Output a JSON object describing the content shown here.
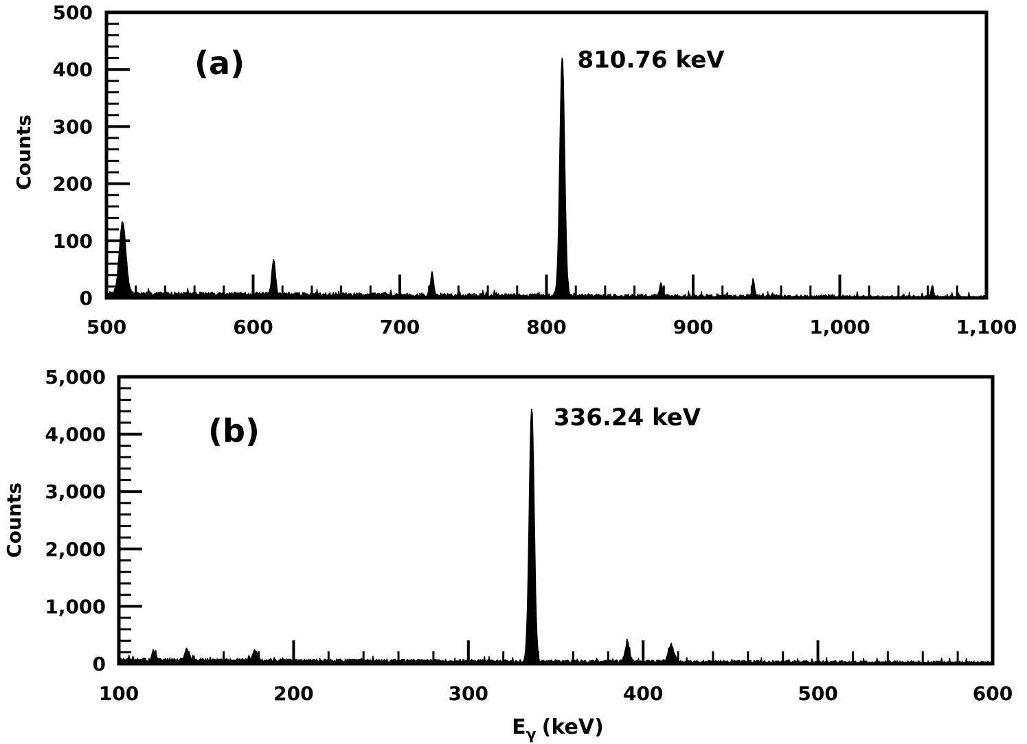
{
  "chart_data": [
    {
      "type": "line",
      "panel_label": "(a)",
      "xlabel": "",
      "ylabel": "Counts",
      "xlim": [
        500,
        1100
      ],
      "ylim": [
        0,
        500
      ],
      "x_ticks": [
        500,
        600,
        700,
        800,
        900,
        1000,
        1100
      ],
      "x_tick_labels": [
        "500",
        "600",
        "700",
        "800",
        "900",
        "1,000",
        "1,100"
      ],
      "y_ticks": [
        0,
        100,
        200,
        300,
        400,
        500
      ],
      "y_tick_labels": [
        "0",
        "100",
        "200",
        "300",
        "400",
        "500"
      ],
      "y_minor_step": 20,
      "x_tick_step": 100,
      "x_minor_step": 20,
      "grid": false,
      "line_color": "#000000",
      "baseline": {
        "from": 500,
        "to": 1100,
        "mean": 7,
        "slope_per_100kev": -1.2
      },
      "peaks": [
        {
          "x": 511,
          "y": 125,
          "width": 2.2
        },
        {
          "x": 614,
          "y": 60,
          "width": 1.2
        },
        {
          "x": 722,
          "y": 38,
          "width": 1.0
        },
        {
          "x": 810.76,
          "y": 420,
          "width": 1.6
        },
        {
          "x": 878,
          "y": 25,
          "width": 0.8
        },
        {
          "x": 941,
          "y": 30,
          "width": 0.8
        },
        {
          "x": 1063,
          "y": 22,
          "width": 0.8
        }
      ],
      "annotations": [
        {
          "text": "810.76 keV",
          "x": 810.76,
          "y": 420
        }
      ]
    },
    {
      "type": "line",
      "panel_label": "(b)",
      "xlabel": "E",
      "xlabel_sub": "γ",
      "xlabel_unit": "(keV)",
      "ylabel": "Counts",
      "xlim": [
        100,
        600
      ],
      "ylim": [
        0,
        5000
      ],
      "x_ticks": [
        100,
        200,
        300,
        400,
        500,
        600
      ],
      "x_tick_labels": [
        "100",
        "200",
        "300",
        "400",
        "500",
        "600"
      ],
      "y_ticks": [
        0,
        1000,
        2000,
        3000,
        4000,
        5000
      ],
      "y_tick_labels": [
        "0",
        "1,000",
        "2,000",
        "3,000",
        "4,000",
        "5,000"
      ],
      "y_minor_step": 200,
      "x_tick_step": 100,
      "x_minor_step": 20,
      "grid": false,
      "line_color": "#000000",
      "baseline": {
        "from": 100,
        "to": 600,
        "mean": 60,
        "slope_per_100kev": -10
      },
      "peaks": [
        {
          "x": 120,
          "y": 170,
          "width": 1.0
        },
        {
          "x": 139,
          "y": 190,
          "width": 1.2
        },
        {
          "x": 178,
          "y": 180,
          "width": 1.2
        },
        {
          "x": 336.24,
          "y": 4420,
          "width": 1.4
        },
        {
          "x": 391,
          "y": 320,
          "width": 1.2
        },
        {
          "x": 416,
          "y": 300,
          "width": 1.6
        }
      ],
      "annotations": [
        {
          "text": "336.24 keV",
          "x": 336.24,
          "y": 4420
        }
      ]
    }
  ]
}
